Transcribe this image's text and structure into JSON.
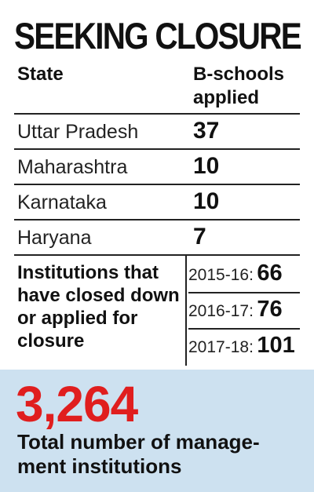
{
  "title": "SEEKING CLOSURE",
  "table": {
    "header_state": "State",
    "header_bschools": "B-schools applied",
    "rows": [
      {
        "state": "Uttar Pradesh",
        "value": "37"
      },
      {
        "state": "Maharashtra",
        "value": "10"
      },
      {
        "state": "Karnataka",
        "value": "10"
      },
      {
        "state": "Haryana",
        "value": "7"
      }
    ]
  },
  "closures": {
    "label": "Institutions that have closed down or applied for closure",
    "years": [
      {
        "year": "2015-16:",
        "value": "66"
      },
      {
        "year": "2016-17:",
        "value": "76"
      },
      {
        "year": "2017-18:",
        "value": "101"
      }
    ]
  },
  "total": {
    "number": "3,264",
    "caption": "Total number of manage-ment institutions"
  },
  "colors": {
    "accent": "#e01e1e",
    "panel": "#cde1f0"
  }
}
